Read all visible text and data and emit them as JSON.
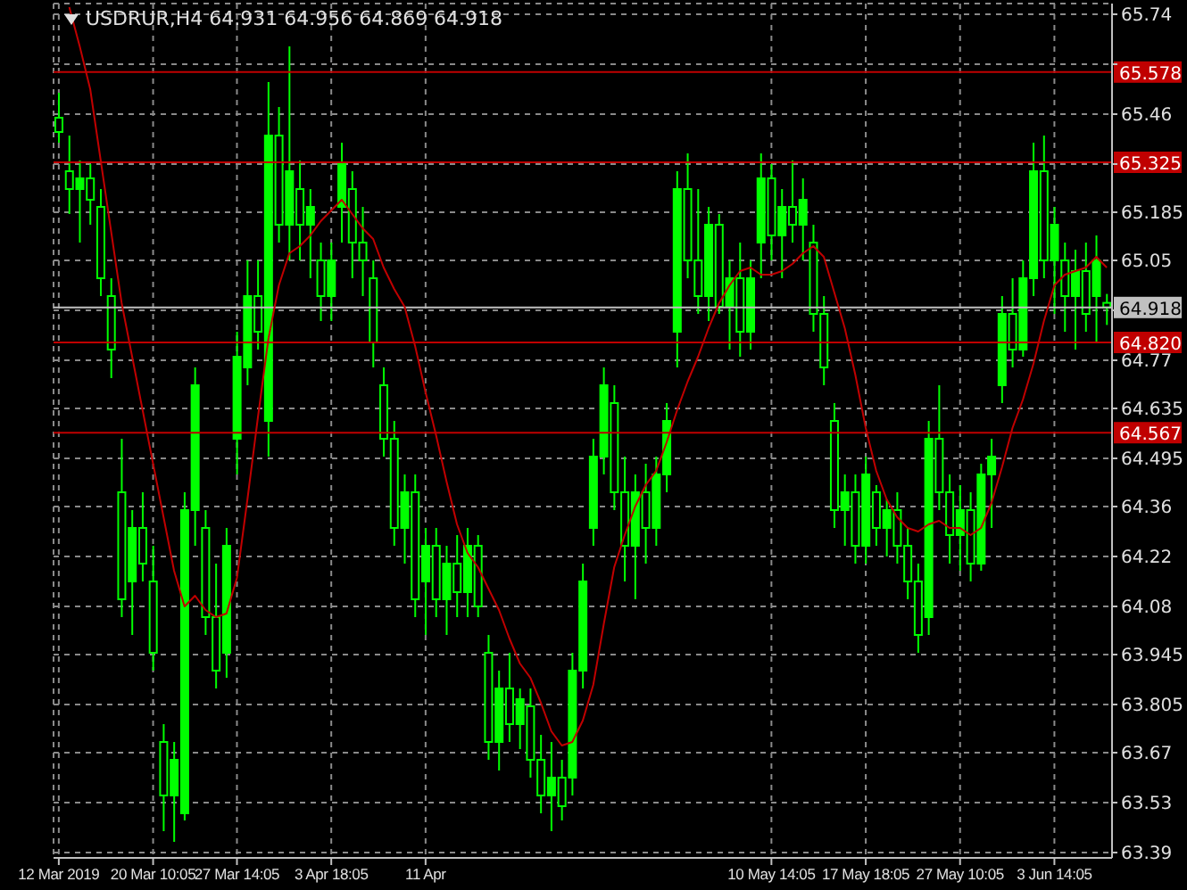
{
  "chart_data": {
    "type": "candlestick",
    "title": "USDRUR,H4  64.931 64.956 64.869 64.918",
    "categories": [
      "12 Mar 2019",
      null,
      null,
      null,
      null,
      null,
      null,
      null,
      null,
      "20 Mar 10:05",
      null,
      null,
      null,
      null,
      null,
      null,
      null,
      "27 Mar 14:05",
      null,
      null,
      null,
      null,
      null,
      null,
      null,
      null,
      "3 Apr 18:05",
      null,
      null,
      null,
      null,
      null,
      null,
      null,
      null,
      "11 Apr",
      null,
      null,
      null,
      null,
      null,
      null,
      null,
      null,
      null,
      null,
      null,
      null,
      null,
      null,
      null,
      null,
      null,
      null,
      null,
      null,
      null,
      null,
      null,
      null,
      null,
      null,
      null,
      null,
      null,
      null,
      null,
      null,
      "10 May 14:05",
      null,
      null,
      null,
      null,
      null,
      null,
      null,
      null,
      "17 May 18:05",
      null,
      null,
      null,
      null,
      null,
      null,
      null,
      null,
      "27 May 10:05",
      null,
      null,
      null,
      null,
      null,
      null,
      null,
      null,
      "3 Jun 14:05",
      null,
      null,
      null,
      null,
      null
    ],
    "series": [
      {
        "type": "candlestick",
        "color": "#00ff00",
        "ohlc": [
          [
            65.45,
            65.52,
            65.38,
            65.41
          ],
          [
            65.3,
            65.4,
            65.18,
            65.25
          ],
          [
            65.25,
            65.33,
            65.1,
            65.28
          ],
          [
            65.28,
            65.32,
            65.15,
            65.22
          ],
          [
            65.2,
            65.25,
            64.95,
            65.0
          ],
          [
            64.95,
            65.0,
            64.72,
            64.8
          ],
          [
            64.4,
            64.55,
            64.05,
            64.1
          ],
          [
            64.15,
            64.35,
            64.0,
            64.3
          ],
          [
            64.3,
            64.4,
            64.15,
            64.2
          ],
          [
            64.15,
            64.25,
            63.9,
            63.95
          ],
          [
            63.7,
            63.75,
            63.45,
            63.55
          ],
          [
            63.55,
            63.7,
            63.42,
            63.65
          ],
          [
            63.5,
            64.4,
            63.48,
            64.35
          ],
          [
            64.35,
            64.75,
            64.25,
            64.7
          ],
          [
            64.3,
            64.35,
            64.0,
            64.05
          ],
          [
            64.05,
            64.2,
            63.85,
            63.9
          ],
          [
            63.95,
            64.3,
            63.88,
            64.25
          ],
          [
            64.55,
            64.85,
            64.45,
            64.78
          ],
          [
            64.75,
            65.05,
            64.7,
            64.95
          ],
          [
            64.95,
            65.05,
            64.8,
            64.85
          ],
          [
            64.6,
            65.55,
            64.5,
            65.4
          ],
          [
            65.4,
            65.48,
            65.1,
            65.15
          ],
          [
            65.15,
            65.65,
            65.05,
            65.3
          ],
          [
            65.25,
            65.33,
            65.05,
            65.15
          ],
          [
            65.15,
            65.25,
            65.0,
            65.2
          ],
          [
            65.05,
            65.1,
            64.88,
            64.95
          ],
          [
            64.95,
            65.1,
            64.88,
            65.05
          ],
          [
            65.2,
            65.38,
            65.1,
            65.32
          ],
          [
            65.25,
            65.3,
            65.0,
            65.1
          ],
          [
            65.1,
            65.2,
            64.95,
            65.05
          ],
          [
            65.0,
            65.05,
            64.75,
            64.82
          ],
          [
            64.7,
            64.75,
            64.5,
            64.55
          ],
          [
            64.55,
            64.6,
            64.25,
            64.3
          ],
          [
            64.3,
            64.45,
            64.2,
            64.4
          ],
          [
            64.4,
            64.45,
            64.05,
            64.1
          ],
          [
            64.15,
            64.3,
            64.0,
            64.25
          ],
          [
            64.25,
            64.3,
            64.05,
            64.1
          ],
          [
            64.1,
            64.25,
            64.0,
            64.2
          ],
          [
            64.2,
            64.28,
            64.05,
            64.12
          ],
          [
            64.12,
            64.3,
            64.05,
            64.25
          ],
          [
            64.25,
            64.28,
            64.05,
            64.08
          ],
          [
            63.95,
            64.0,
            63.65,
            63.7
          ],
          [
            63.7,
            63.9,
            63.62,
            63.85
          ],
          [
            63.85,
            63.95,
            63.7,
            63.75
          ],
          [
            63.75,
            63.85,
            63.68,
            63.82
          ],
          [
            63.8,
            63.85,
            63.6,
            63.65
          ],
          [
            63.65,
            63.72,
            63.5,
            63.55
          ],
          [
            63.55,
            63.7,
            63.45,
            63.6
          ],
          [
            63.6,
            63.65,
            63.48,
            63.52
          ],
          [
            63.6,
            63.95,
            63.55,
            63.9
          ],
          [
            63.9,
            64.2,
            63.85,
            64.15
          ],
          [
            64.3,
            64.55,
            64.25,
            64.5
          ],
          [
            64.5,
            64.75,
            64.45,
            64.7
          ],
          [
            64.65,
            64.7,
            64.35,
            64.4
          ],
          [
            64.4,
            64.5,
            64.15,
            64.25
          ],
          [
            64.25,
            64.45,
            64.1,
            64.4
          ],
          [
            64.4,
            64.48,
            64.2,
            64.3
          ],
          [
            64.3,
            64.5,
            64.25,
            64.45
          ],
          [
            64.45,
            64.65,
            64.4,
            64.6
          ],
          [
            64.85,
            65.3,
            64.75,
            65.25
          ],
          [
            65.25,
            65.35,
            65.0,
            65.05
          ],
          [
            65.05,
            65.25,
            64.9,
            64.95
          ],
          [
            64.95,
            65.2,
            64.88,
            65.15
          ],
          [
            65.15,
            65.18,
            64.9,
            64.92
          ],
          [
            64.92,
            65.05,
            64.8,
            65.0
          ],
          [
            65.0,
            65.1,
            64.78,
            64.85
          ],
          [
            64.85,
            65.05,
            64.8,
            65.0
          ],
          [
            65.1,
            65.35,
            65.0,
            65.28
          ],
          [
            65.28,
            65.32,
            65.05,
            65.12
          ],
          [
            65.12,
            65.25,
            65.0,
            65.2
          ],
          [
            65.2,
            65.33,
            65.1,
            65.15
          ],
          [
            65.15,
            65.28,
            65.05,
            65.22
          ],
          [
            65.1,
            65.15,
            64.85,
            64.9
          ],
          [
            64.9,
            64.95,
            64.7,
            64.75
          ],
          [
            64.6,
            64.65,
            64.3,
            64.35
          ],
          [
            64.35,
            64.45,
            64.25,
            64.4
          ],
          [
            64.4,
            64.45,
            64.2,
            64.25
          ],
          [
            64.25,
            64.5,
            64.2,
            64.45
          ],
          [
            64.4,
            64.42,
            64.25,
            64.3
          ],
          [
            64.3,
            64.38,
            64.22,
            64.35
          ],
          [
            64.35,
            64.4,
            64.2,
            64.25
          ],
          [
            64.25,
            64.3,
            64.1,
            64.15
          ],
          [
            64.15,
            64.2,
            63.95,
            64.0
          ],
          [
            64.05,
            64.6,
            64.0,
            64.55
          ],
          [
            64.55,
            64.7,
            64.35,
            64.4
          ],
          [
            64.4,
            64.45,
            64.2,
            64.28
          ],
          [
            64.28,
            64.42,
            64.18,
            64.35
          ],
          [
            64.35,
            64.4,
            64.15,
            64.2
          ],
          [
            64.2,
            64.48,
            64.18,
            64.45
          ],
          [
            64.45,
            64.55,
            64.3,
            64.5
          ],
          [
            64.7,
            64.95,
            64.65,
            64.9
          ],
          [
            64.9,
            65.0,
            64.75,
            64.8
          ],
          [
            64.8,
            65.05,
            64.78,
            65.0
          ],
          [
            65.0,
            65.38,
            64.95,
            65.3
          ],
          [
            65.3,
            65.4,
            65.0,
            65.05
          ],
          [
            65.05,
            65.2,
            64.9,
            65.15
          ],
          [
            65.05,
            65.1,
            64.85,
            64.95
          ],
          [
            64.95,
            65.08,
            64.8,
            65.02
          ],
          [
            65.02,
            65.1,
            64.85,
            64.9
          ],
          [
            64.95,
            65.12,
            64.82,
            65.05
          ],
          [
            64.931,
            64.956,
            64.869,
            64.918
          ]
        ]
      },
      {
        "type": "line",
        "color": "#c00000",
        "values": [
          null,
          65.76,
          65.65,
          65.53,
          65.33,
          65.13,
          64.93,
          64.78,
          64.63,
          64.48,
          64.33,
          64.18,
          64.08,
          64.11,
          64.07,
          64.05,
          64.06,
          64.16,
          64.38,
          64.61,
          64.83,
          64.98,
          65.07,
          65.09,
          65.12,
          65.16,
          65.19,
          65.22,
          65.18,
          65.14,
          65.11,
          65.03,
          64.97,
          64.92,
          64.81,
          64.68,
          64.56,
          64.43,
          64.31,
          64.23,
          64.19,
          64.13,
          64.07,
          63.99,
          63.92,
          63.88,
          63.81,
          63.73,
          63.69,
          63.7,
          63.76,
          63.86,
          64.03,
          64.19,
          64.28,
          64.36,
          64.42,
          64.46,
          64.54,
          64.63,
          64.71,
          64.78,
          64.86,
          64.93,
          64.98,
          65.02,
          65.03,
          65.01,
          65.01,
          65.02,
          65.04,
          65.07,
          65.09,
          65.06,
          64.96,
          64.86,
          64.73,
          64.58,
          64.46,
          64.38,
          64.33,
          64.3,
          64.29,
          64.31,
          64.32,
          64.3,
          64.3,
          64.28,
          64.3,
          64.37,
          64.47,
          64.58,
          64.66,
          64.76,
          64.88,
          64.98,
          65.01,
          65.02,
          65.03,
          65.06,
          65.03
        ]
      }
    ],
    "ylim": [
      63.375,
      65.77
    ],
    "yticks": [
      65.74,
      {
        "value": 65.6,
        "label": null
      },
      65.46,
      {
        "value": 65.32,
        "label": null
      },
      65.185,
      65.05,
      {
        "value": 64.91,
        "label": null
      },
      64.77,
      64.635,
      64.495,
      64.36,
      64.22,
      64.08,
      63.945,
      63.805,
      63.67,
      63.53,
      63.39
    ],
    "ref_lines": [
      {
        "axis": "y",
        "value": 65.578,
        "label": "65.578",
        "color": "#c00000"
      },
      {
        "axis": "y",
        "value": 65.325,
        "label": "65.325",
        "color": "#c00000"
      },
      {
        "axis": "y",
        "value": 64.918,
        "label": "64.918",
        "color": "#c0c0c0"
      },
      {
        "axis": "y",
        "value": 64.82,
        "label": "64.820",
        "color": "#c00000"
      },
      {
        "axis": "y",
        "value": 64.567,
        "label": "64.567",
        "color": "#c00000"
      }
    ],
    "grid": true
  }
}
